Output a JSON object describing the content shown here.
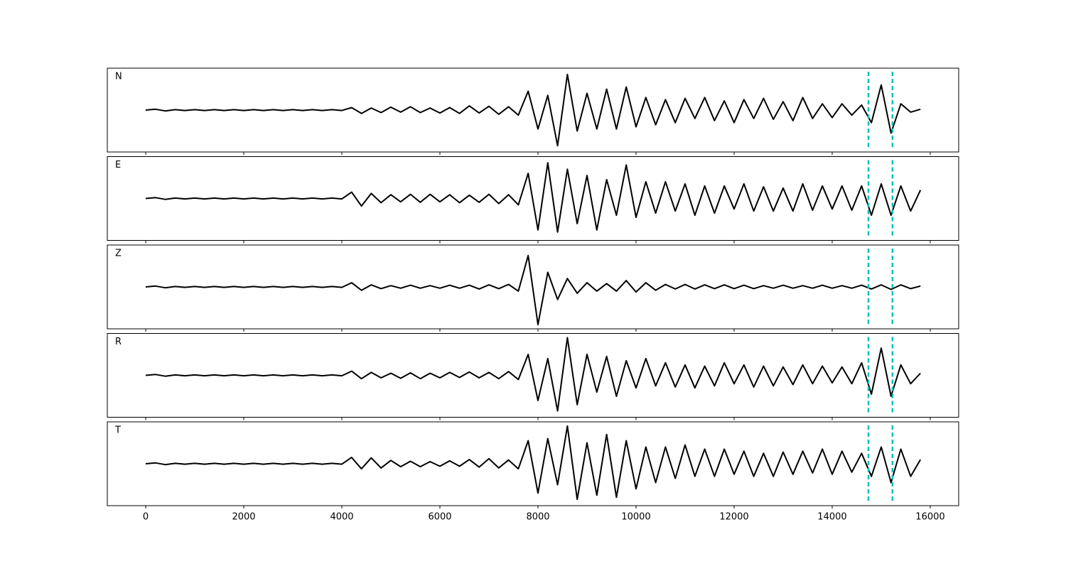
{
  "chart_data": {
    "type": "line",
    "line_color": "#000000",
    "marker_color": "#00bfbf",
    "xlim": [
      -783,
      16580
    ],
    "ylim": [
      -1,
      1
    ],
    "xticks": [
      0,
      2000,
      4000,
      6000,
      8000,
      10000,
      12000,
      14000,
      16000
    ],
    "markers": [
      14740,
      15230
    ],
    "x": [
      0,
      200,
      400,
      600,
      800,
      1000,
      1200,
      1400,
      1600,
      1800,
      2000,
      2200,
      2400,
      2600,
      2800,
      3000,
      3200,
      3400,
      3600,
      3800,
      4000,
      4200,
      4400,
      4600,
      4800,
      5000,
      5200,
      5400,
      5600,
      5800,
      6000,
      6200,
      6400,
      6600,
      6800,
      7000,
      7200,
      7400,
      7600,
      7800,
      8000,
      8200,
      8400,
      8600,
      8800,
      9000,
      9200,
      9400,
      9600,
      9800,
      10000,
      10200,
      10400,
      10600,
      10800,
      11000,
      11200,
      11400,
      11600,
      11800,
      12000,
      12200,
      12400,
      12600,
      12800,
      13000,
      13200,
      13400,
      13600,
      13800,
      14000,
      14200,
      14400,
      14600,
      14800,
      15000,
      15200,
      15400,
      15600,
      15800
    ],
    "panels": [
      {
        "label": "N",
        "values": [
          0,
          0.02,
          -0.02,
          0.01,
          -0.01,
          0.01,
          -0.01,
          0.01,
          -0.01,
          0.01,
          -0.01,
          0.01,
          -0.01,
          0.01,
          -0.01,
          0.01,
          -0.01,
          0.01,
          -0.01,
          0.01,
          -0.01,
          0.06,
          -0.08,
          0.05,
          -0.06,
          0.07,
          -0.05,
          0.08,
          -0.06,
          0.05,
          -0.07,
          0.06,
          -0.08,
          0.1,
          -0.07,
          0.09,
          -0.1,
          0.08,
          -0.12,
          0.45,
          -0.45,
          0.35,
          -0.85,
          0.85,
          -0.5,
          0.4,
          -0.45,
          0.5,
          -0.45,
          0.55,
          -0.4,
          0.3,
          -0.35,
          0.25,
          -0.3,
          0.28,
          -0.2,
          0.3,
          -0.25,
          0.22,
          -0.3,
          0.25,
          -0.2,
          0.28,
          -0.22,
          0.2,
          -0.25,
          0.3,
          -0.2,
          0.15,
          -0.18,
          0.15,
          -0.12,
          0.12,
          -0.3,
          0.6,
          -0.55,
          0.15,
          -0.05,
          0.02
        ]
      },
      {
        "label": "E",
        "values": [
          0,
          0.02,
          -0.02,
          0.01,
          -0.01,
          0.01,
          -0.01,
          0.01,
          -0.01,
          0.01,
          -0.01,
          0.01,
          -0.01,
          0.01,
          -0.01,
          0.01,
          -0.01,
          0.01,
          -0.01,
          0.01,
          -0.01,
          0.15,
          -0.18,
          0.12,
          -0.1,
          0.09,
          -0.08,
          0.1,
          -0.09,
          0.1,
          -0.08,
          0.09,
          -0.1,
          0.08,
          -0.09,
          0.1,
          -0.12,
          0.09,
          -0.15,
          0.6,
          -0.75,
          0.85,
          -0.8,
          0.7,
          -0.6,
          0.55,
          -0.75,
          0.45,
          -0.4,
          0.8,
          -0.45,
          0.4,
          -0.35,
          0.4,
          -0.3,
          0.35,
          -0.4,
          0.3,
          -0.35,
          0.3,
          -0.25,
          0.35,
          -0.3,
          0.28,
          -0.3,
          0.25,
          -0.3,
          0.35,
          -0.28,
          0.3,
          -0.25,
          0.3,
          -0.28,
          0.3,
          -0.4,
          0.35,
          -0.4,
          0.3,
          -0.3,
          0.2
        ]
      },
      {
        "label": "Z",
        "values": [
          0,
          0.02,
          -0.02,
          0.01,
          -0.01,
          0.01,
          -0.01,
          0.01,
          -0.01,
          0.01,
          -0.01,
          0.01,
          -0.01,
          0.01,
          -0.01,
          0.01,
          -0.01,
          0.01,
          -0.01,
          0.01,
          -0.01,
          0.1,
          -0.08,
          0.05,
          -0.04,
          0.03,
          -0.03,
          0.04,
          -0.03,
          0.03,
          -0.03,
          0.04,
          -0.03,
          0.04,
          -0.05,
          0.05,
          -0.04,
          0.06,
          -0.1,
          0.75,
          -0.9,
          0.35,
          -0.3,
          0.2,
          -0.15,
          0.1,
          -0.1,
          0.08,
          -0.1,
          0.15,
          -0.12,
          0.1,
          -0.08,
          0.06,
          -0.05,
          0.06,
          -0.05,
          0.05,
          -0.04,
          0.05,
          -0.04,
          0.04,
          -0.04,
          0.03,
          -0.03,
          0.04,
          -0.03,
          0.03,
          -0.03,
          0.04,
          -0.03,
          0.03,
          -0.03,
          0.04,
          -0.05,
          0.05,
          -0.06,
          0.05,
          -0.04,
          0.02
        ]
      },
      {
        "label": "R",
        "values": [
          0,
          0.02,
          -0.02,
          0.01,
          -0.01,
          0.01,
          -0.01,
          0.01,
          -0.01,
          0.01,
          -0.01,
          0.01,
          -0.01,
          0.01,
          -0.01,
          0.01,
          -0.01,
          0.01,
          -0.01,
          0.01,
          -0.01,
          0.1,
          -0.08,
          0.07,
          -0.06,
          0.05,
          -0.07,
          0.06,
          -0.08,
          0.05,
          -0.06,
          0.07,
          -0.05,
          0.08,
          -0.06,
          0.07,
          -0.08,
          0.09,
          -0.1,
          0.5,
          -0.6,
          0.4,
          -0.85,
          0.9,
          -0.7,
          0.5,
          -0.4,
          0.45,
          -0.5,
          0.35,
          -0.3,
          0.4,
          -0.25,
          0.3,
          -0.28,
          0.25,
          -0.3,
          0.22,
          -0.25,
          0.3,
          -0.2,
          0.25,
          -0.28,
          0.22,
          -0.25,
          0.2,
          -0.22,
          0.25,
          -0.2,
          0.22,
          -0.18,
          0.2,
          -0.2,
          0.3,
          -0.45,
          0.65,
          -0.5,
          0.25,
          -0.2,
          0.05
        ]
      },
      {
        "label": "T",
        "values": [
          0,
          0.02,
          -0.02,
          0.01,
          -0.01,
          0.01,
          -0.01,
          0.01,
          -0.01,
          0.01,
          -0.01,
          0.01,
          -0.01,
          0.01,
          -0.01,
          0.01,
          -0.01,
          0.01,
          -0.01,
          0.01,
          -0.01,
          0.15,
          -0.12,
          0.14,
          -0.1,
          0.08,
          -0.07,
          0.06,
          -0.07,
          0.05,
          -0.06,
          0.07,
          -0.06,
          0.1,
          -0.08,
          0.12,
          -0.1,
          0.09,
          -0.12,
          0.55,
          -0.7,
          0.6,
          -0.5,
          0.9,
          -0.85,
          0.5,
          -0.75,
          0.7,
          -0.8,
          0.55,
          -0.6,
          0.4,
          -0.45,
          0.4,
          -0.35,
          0.45,
          -0.3,
          0.35,
          -0.3,
          0.35,
          -0.25,
          0.3,
          -0.3,
          0.25,
          -0.3,
          0.28,
          -0.25,
          0.3,
          -0.22,
          0.35,
          -0.25,
          0.3,
          -0.2,
          0.25,
          -0.3,
          0.4,
          -0.45,
          0.35,
          -0.3,
          0.1
        ]
      }
    ]
  }
}
